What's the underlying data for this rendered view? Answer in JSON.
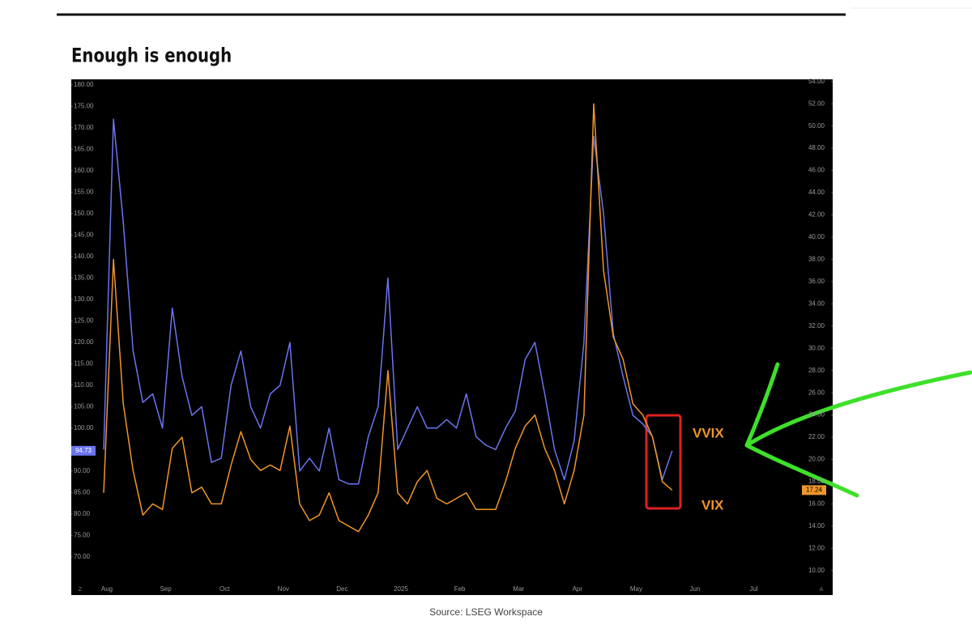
{
  "chart_data": {
    "type": "line",
    "title": "Enough is enough",
    "source": "Source: LSEG Workspace",
    "categories": [
      "Aug",
      null,
      null,
      null,
      null,
      null,
      "Sep",
      null,
      null,
      null,
      null,
      null,
      "Oct",
      null,
      null,
      null,
      null,
      null,
      "Nov",
      null,
      null,
      null,
      null,
      null,
      "Dec",
      null,
      null,
      null,
      null,
      null,
      "2025",
      null,
      null,
      null,
      null,
      null,
      "Feb",
      null,
      null,
      null,
      null,
      null,
      "Mar",
      null,
      null,
      null,
      null,
      null,
      "Apr",
      null,
      null,
      null,
      null,
      null,
      "May",
      null,
      null,
      null,
      null,
      null,
      "Jun",
      null,
      null,
      null,
      null,
      null,
      "Jul",
      null,
      null,
      null,
      null,
      null,
      null,
      null
    ],
    "series": [
      {
        "name": "VVIX",
        "color": "#6b74ef",
        "axis": "y",
        "values": [
          95,
          172,
          148,
          118,
          106,
          108,
          100,
          128,
          112,
          103,
          105,
          92,
          93,
          110,
          118,
          105,
          100,
          108,
          110,
          120,
          90,
          93,
          90,
          100,
          88,
          87,
          87,
          98,
          105,
          135,
          95,
          100,
          105,
          100,
          100,
          102,
          100,
          108,
          98,
          96,
          95,
          100,
          104,
          116,
          120,
          108,
          95,
          88,
          97,
          120,
          168,
          150,
          122,
          112,
          103,
          101,
          98,
          88,
          94.73,
          null,
          null,
          null,
          null,
          null,
          null,
          null,
          null,
          null,
          null,
          null,
          null,
          null,
          null,
          null
        ]
      },
      {
        "name": "VIX",
        "color": "#f0962a",
        "axis": "y2",
        "values": [
          17,
          38,
          25,
          19,
          15,
          16,
          15.5,
          21,
          22,
          17,
          17.5,
          16,
          16,
          19.5,
          22.5,
          20,
          19,
          19.5,
          19,
          23,
          16,
          14.5,
          15,
          17,
          14.5,
          14,
          13.5,
          15,
          17,
          28,
          17,
          16,
          18,
          19,
          16.5,
          16,
          16.5,
          17,
          15.5,
          15.5,
          15.5,
          18,
          21,
          23,
          24,
          21,
          19,
          16,
          19,
          24,
          52,
          37,
          31,
          29,
          25,
          24,
          22,
          18,
          17.24,
          null,
          null,
          null,
          null,
          null,
          null,
          null,
          null,
          null,
          null,
          null,
          null,
          null,
          null,
          null
        ]
      }
    ],
    "ylim": [
      61.1,
      181.3
    ],
    "yticks": [
      {
        "value": 70,
        "label": "70.00"
      },
      {
        "value": 75,
        "label": "75.00"
      },
      {
        "value": 80,
        "label": "80.00"
      },
      {
        "value": 85,
        "label": "85.00"
      },
      {
        "value": 90,
        "label": "90.00"
      },
      {
        "value": 95,
        "label": "95.00"
      },
      {
        "value": 100,
        "label": "100.00"
      },
      {
        "value": 105,
        "label": "105.00"
      },
      {
        "value": 110,
        "label": "110.00"
      },
      {
        "value": 115,
        "label": "115.00"
      },
      {
        "value": 120,
        "label": "120.00"
      },
      {
        "value": 125,
        "label": "125.00"
      },
      {
        "value": 130,
        "label": "130.00"
      },
      {
        "value": 135,
        "label": "135.00"
      },
      {
        "value": 140,
        "label": "140.00"
      },
      {
        "value": 145,
        "label": "145.00"
      },
      {
        "value": 150,
        "label": "150.00"
      },
      {
        "value": 155,
        "label": "155.00"
      },
      {
        "value": 160,
        "label": "160.00"
      },
      {
        "value": 165,
        "label": "165.00"
      },
      {
        "value": 170,
        "label": "170.00"
      },
      {
        "value": 175,
        "label": "175.00"
      },
      {
        "value": 180,
        "label": "180.00"
      }
    ],
    "y2lim": [
      7.8,
      54.2
    ],
    "y2ticks": [
      {
        "value": 10,
        "label": "10.00"
      },
      {
        "value": 12,
        "label": "12.00"
      },
      {
        "value": 14,
        "label": "14.00"
      },
      {
        "value": 16,
        "label": "16.00"
      },
      {
        "value": 18,
        "label": "18.00"
      },
      {
        "value": 20,
        "label": "20.00"
      },
      {
        "value": 22,
        "label": "22.00"
      },
      {
        "value": 24,
        "label": "24.00"
      },
      {
        "value": 26,
        "label": "26.00"
      },
      {
        "value": 28,
        "label": "28.00"
      },
      {
        "value": 30,
        "label": "30.00"
      },
      {
        "value": 32,
        "label": "32.00"
      },
      {
        "value": 34,
        "label": "34.00"
      },
      {
        "value": 36,
        "label": "36.00"
      },
      {
        "value": 38,
        "label": "38.00"
      },
      {
        "value": 40,
        "label": "40.00"
      },
      {
        "value": 42,
        "label": "42.00"
      },
      {
        "value": 44,
        "label": "44.00"
      },
      {
        "value": 46,
        "label": "46.00"
      },
      {
        "value": 48,
        "label": "48.00"
      },
      {
        "value": 50,
        "label": "50.00"
      },
      {
        "value": 52,
        "label": "52.00"
      },
      {
        "value": 54,
        "label": "54.00"
      }
    ],
    "grid": false
  }
}
